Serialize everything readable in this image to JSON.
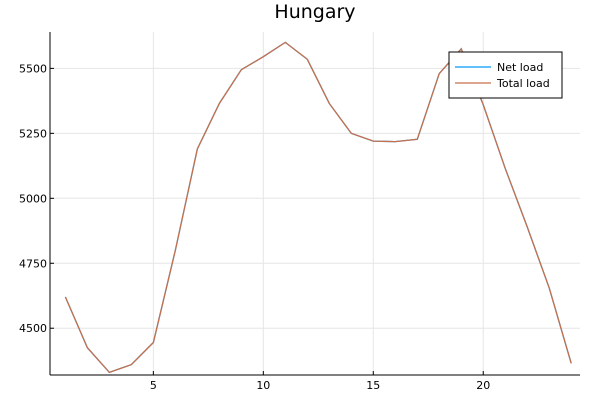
{
  "chart_data": {
    "type": "line",
    "title": "Hungary",
    "xlabel": "",
    "ylabel": "",
    "xlim": [
      0.3,
      24.4
    ],
    "ylim": [
      4320,
      5640
    ],
    "xticks": [
      5,
      10,
      15,
      20
    ],
    "xtick_labels": [
      "5",
      "10",
      "15",
      "20"
    ],
    "yticks": [
      4500,
      4750,
      5000,
      5250,
      5500
    ],
    "ytick_labels": [
      "4500",
      "4750",
      "5000",
      "5250",
      "5500"
    ],
    "grid": true,
    "legend_position": "top-right",
    "x": [
      1,
      2,
      3,
      4,
      5,
      6,
      7,
      8,
      9,
      10,
      11,
      12,
      13,
      14,
      15,
      16,
      17,
      18,
      19,
      20,
      21,
      22,
      23,
      24
    ],
    "series": [
      {
        "name": "Net load",
        "color": "#009AFA",
        "values": [
          4620,
          4425,
          4330,
          4360,
          4445,
          4800,
          5190,
          5365,
          5495,
          5545,
          5600,
          5535,
          5365,
          5250,
          5220,
          5218,
          5227,
          5480,
          5575,
          5360,
          5115,
          4890,
          4655,
          4365
        ]
      },
      {
        "name": "Total load",
        "color": "#C8704B",
        "values": [
          4620,
          4425,
          4330,
          4360,
          4445,
          4800,
          5190,
          5365,
          5495,
          5545,
          5600,
          5535,
          5365,
          5250,
          5220,
          5218,
          5227,
          5480,
          5575,
          5360,
          5115,
          4890,
          4655,
          4365
        ]
      }
    ]
  }
}
